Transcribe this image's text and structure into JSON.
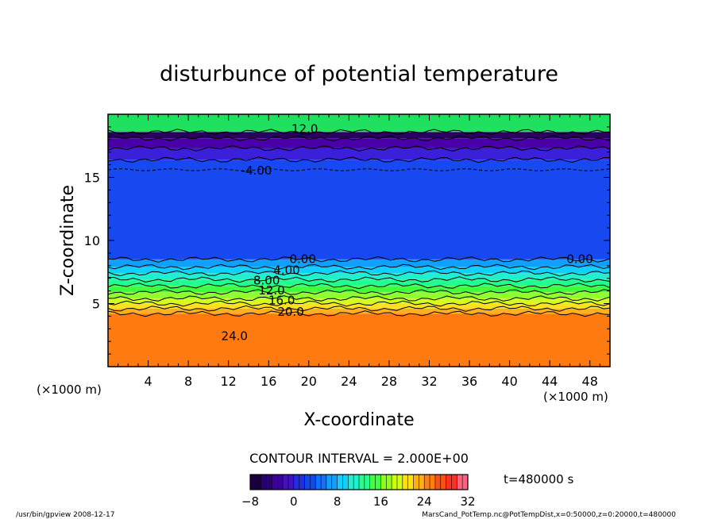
{
  "chart_data": {
    "type": "heatmap",
    "title": "disturbunce of potential temperature",
    "xlabel": "X-coordinate",
    "ylabel": "Z-coordinate",
    "x_unit_left": "(×1000 m)",
    "x_unit_right": "(×1000 m)",
    "xlim": [
      0,
      50
    ],
    "ylim": [
      0,
      20
    ],
    "x_ticks": [
      4,
      8,
      12,
      16,
      20,
      24,
      28,
      32,
      36,
      40,
      44,
      48
    ],
    "y_ticks": [
      5,
      10,
      15
    ],
    "contour_interval_text": "CONTOUR INTERVAL = 2.000E+00",
    "time_text": "t=480000 s",
    "colorbar": {
      "min": -8,
      "max": 32,
      "ticks": [
        -8,
        0,
        8,
        16,
        24,
        32
      ],
      "colors": [
        "#1a0040",
        "#2a0070",
        "#3a00a0",
        "#4410c8",
        "#2030e0",
        "#1048f0",
        "#1070ff",
        "#10a0ff",
        "#10d0ff",
        "#20f0d0",
        "#20ff90",
        "#40ff40",
        "#90ff20",
        "#d0ff10",
        "#ffe010",
        "#ffb010",
        "#ff8010",
        "#ff5010",
        "#ff3020",
        "#ff6080"
      ]
    },
    "contour_labels": [
      {
        "text": "12.0",
        "x": 19.6,
        "z": 18.9
      },
      {
        "text": "-4.00",
        "x": 14.8,
        "z": 15.6
      },
      {
        "text": "0.00",
        "x": 19.4,
        "z": 8.6
      },
      {
        "text": "0.00",
        "x": 47.0,
        "z": 8.6
      },
      {
        "text": "4.00",
        "x": 17.8,
        "z": 7.7
      },
      {
        "text": "8.00",
        "x": 15.8,
        "z": 6.9
      },
      {
        "text": "12.0",
        "x": 16.3,
        "z": 6.1
      },
      {
        "text": "16.0",
        "x": 17.3,
        "z": 5.3
      },
      {
        "text": "20.0",
        "x": 18.2,
        "z": 4.4
      },
      {
        "text": "24.0",
        "x": 12.6,
        "z": 2.5
      }
    ],
    "field_bands": [
      {
        "z0": 0.0,
        "z1": 4.2,
        "color": "#ff7a10"
      },
      {
        "z0": 4.2,
        "z1": 4.6,
        "color": "#ffb020"
      },
      {
        "z0": 4.6,
        "z1": 5.0,
        "color": "#ffe020"
      },
      {
        "z0": 5.0,
        "z1": 5.4,
        "color": "#d0ff20"
      },
      {
        "z0": 5.4,
        "z1": 5.9,
        "color": "#90ff30"
      },
      {
        "z0": 5.9,
        "z1": 6.4,
        "color": "#40ff40"
      },
      {
        "z0": 6.4,
        "z1": 6.9,
        "color": "#20ff90"
      },
      {
        "z0": 6.9,
        "z1": 7.4,
        "color": "#20f0d0"
      },
      {
        "z0": 7.4,
        "z1": 7.9,
        "color": "#10d0ff"
      },
      {
        "z0": 7.9,
        "z1": 8.5,
        "color": "#10a0ff"
      },
      {
        "z0": 8.5,
        "z1": 16.4,
        "color": "#1848f0"
      },
      {
        "z0": 16.4,
        "z1": 17.3,
        "color": "#3a20d8"
      },
      {
        "z0": 17.3,
        "z1": 18.1,
        "color": "#4a00a8"
      },
      {
        "z0": 18.1,
        "z1": 18.6,
        "color": "#2a0060"
      },
      {
        "z0": 18.6,
        "z1": 20.0,
        "color": "#20e060"
      }
    ],
    "grid": false
  },
  "footer_left": "/usr/bin/gpview  2008-12-17",
  "footer_right": "MarsCand_PotTemp.nc@PotTempDist,x=0:50000,z=0:20000,t=480000"
}
